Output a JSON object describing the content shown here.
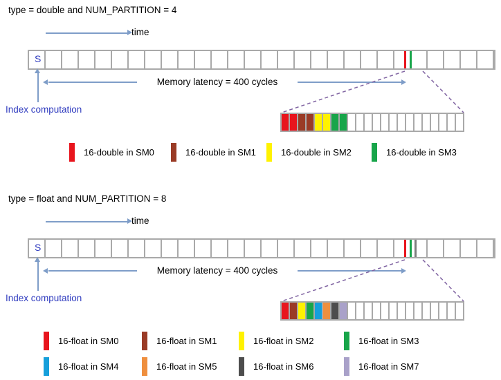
{
  "palette": {
    "sm0": "#E8151D",
    "sm1": "#9A3B26",
    "sm2": "#FFF200",
    "sm3": "#18A54A",
    "sm4": "#169FDB",
    "sm5": "#EF8F3E",
    "sm6": "#4D4D4D",
    "sm7": "#A9A1C9",
    "mark_gray": "#7D7D7D",
    "arrow_blue": "#7E9DC8",
    "dashed_purple": "#8064A2",
    "cell_border": "#A9A9A9",
    "index_text_blue": "#2F3BBF"
  },
  "diagrams": [
    {
      "title": "type = double and NUM_PARTITION = 4",
      "time_label": "time",
      "start_cell_label": "S",
      "latency_label": "Memory latency = 400 cycles",
      "index_label": "Index computation",
      "timeline_cells": 28,
      "timeline_marks": [
        "sm0",
        "sm3"
      ],
      "zoom_cells_total": 22,
      "zoom_cells_colored": [
        "sm0",
        "sm0",
        "sm1",
        "sm1",
        "sm2",
        "sm2",
        "sm3",
        "sm3"
      ],
      "legend_rows": [
        [
          {
            "color": "sm0",
            "label": "16-double in SM0"
          },
          {
            "color": "sm1",
            "label": "16-double in SM1"
          },
          {
            "color": "sm2",
            "label": "16-double in SM2"
          },
          {
            "color": "sm3",
            "label": "16-double in SM3"
          }
        ]
      ]
    },
    {
      "title": "type = float and NUM_PARTITION = 8",
      "time_label": "time",
      "start_cell_label": "S",
      "latency_label": "Memory latency = 400 cycles",
      "index_label": "Index computation",
      "timeline_cells": 28,
      "timeline_marks": [
        "sm0",
        "sm3",
        "mark_gray"
      ],
      "zoom_cells_total": 22,
      "zoom_cells_colored": [
        "sm0",
        "sm1",
        "sm2",
        "sm3",
        "sm4",
        "sm5",
        "sm6",
        "sm7"
      ],
      "legend_rows": [
        [
          {
            "color": "sm0",
            "label": "16-float in SM0"
          },
          {
            "color": "sm1",
            "label": "16-float in SM1"
          },
          {
            "color": "sm2",
            "label": "16-float in SM2"
          },
          {
            "color": "sm3",
            "label": "16-float in SM3"
          }
        ],
        [
          {
            "color": "sm4",
            "label": "16-float in SM4"
          },
          {
            "color": "sm5",
            "label": "16-float in SM5"
          },
          {
            "color": "sm6",
            "label": "16-float in SM6"
          },
          {
            "color": "sm7",
            "label": "16-float in SM7"
          }
        ]
      ]
    }
  ]
}
